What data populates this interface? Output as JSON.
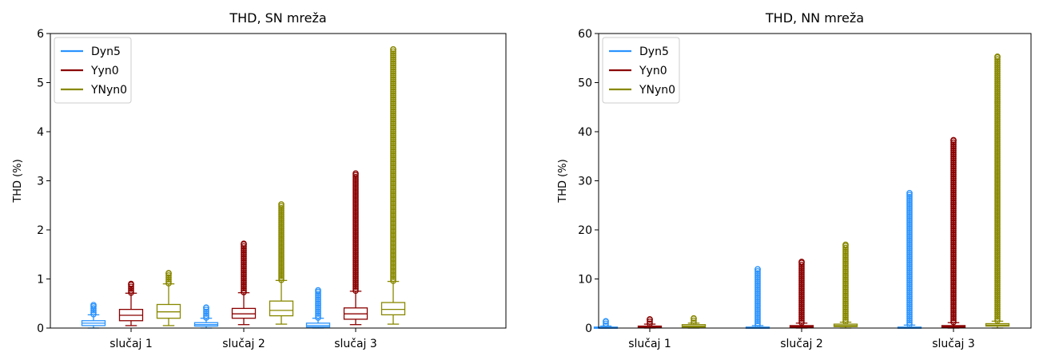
{
  "chart_data": [
    {
      "type": "box",
      "title": "THD, SN mreža",
      "xlabel": "",
      "ylabel": "THD (%)",
      "categories": [
        "slučaj 1",
        "slučaj 2",
        "slučaj 3"
      ],
      "ylim": [
        0,
        6
      ],
      "yticks": [
        "0",
        "1",
        "2",
        "3",
        "4",
        "5",
        "6"
      ],
      "legend_position": "top-left",
      "grid": false,
      "series": [
        {
          "name": "Dyn5",
          "color": "#2a93ff",
          "boxes": [
            {
              "whislo": 0.0,
              "q1": 0.05,
              "med": 0.1,
              "q3": 0.15,
              "whishi": 0.27,
              "fliers_from": 0.28,
              "fliers_to": 0.47
            },
            {
              "whislo": 0.0,
              "q1": 0.04,
              "med": 0.07,
              "q3": 0.11,
              "whishi": 0.2,
              "fliers_from": 0.21,
              "fliers_to": 0.42
            },
            {
              "whislo": 0.0,
              "q1": 0.02,
              "med": 0.05,
              "q3": 0.1,
              "whishi": 0.2,
              "fliers_from": 0.21,
              "fliers_to": 0.77
            }
          ]
        },
        {
          "name": "Yyn0",
          "color": "#8b0000",
          "boxes": [
            {
              "whislo": 0.05,
              "q1": 0.15,
              "med": 0.26,
              "q3": 0.38,
              "whishi": 0.71,
              "fliers_from": 0.72,
              "fliers_to": 0.9
            },
            {
              "whislo": 0.07,
              "q1": 0.2,
              "med": 0.29,
              "q3": 0.4,
              "whishi": 0.72,
              "fliers_from": 0.73,
              "fliers_to": 1.72
            },
            {
              "whislo": 0.07,
              "q1": 0.18,
              "med": 0.29,
              "q3": 0.41,
              "whishi": 0.75,
              "fliers_from": 0.76,
              "fliers_to": 3.15
            }
          ]
        },
        {
          "name": "YNyn0",
          "color": "#888800",
          "boxes": [
            {
              "whislo": 0.05,
              "q1": 0.2,
              "med": 0.33,
              "q3": 0.48,
              "whishi": 0.9,
              "fliers_from": 0.91,
              "fliers_to": 1.12
            },
            {
              "whislo": 0.08,
              "q1": 0.25,
              "med": 0.36,
              "q3": 0.55,
              "whishi": 0.97,
              "fliers_from": 0.98,
              "fliers_to": 2.52
            },
            {
              "whislo": 0.08,
              "q1": 0.27,
              "med": 0.38,
              "q3": 0.52,
              "whishi": 0.95,
              "fliers_from": 0.96,
              "fliers_to": 5.68
            }
          ]
        }
      ]
    },
    {
      "type": "box",
      "title": "THD, NN mreža",
      "xlabel": "",
      "ylabel": "THD (%)",
      "categories": [
        "slučaj 1",
        "slučaj 2",
        "slučaj 3"
      ],
      "ylim": [
        0,
        60
      ],
      "yticks": [
        "0",
        "10",
        "20",
        "30",
        "40",
        "50",
        "60"
      ],
      "legend_position": "top-left",
      "grid": false,
      "series": [
        {
          "name": "Dyn5",
          "color": "#2a93ff",
          "boxes": [
            {
              "whislo": 0.0,
              "q1": 0.05,
              "med": 0.1,
              "q3": 0.2,
              "whishi": 0.4,
              "fliers_from": 0.5,
              "fliers_to": 1.4
            },
            {
              "whislo": 0.0,
              "q1": 0.05,
              "med": 0.1,
              "q3": 0.2,
              "whishi": 0.5,
              "fliers_from": 0.6,
              "fliers_to": 12.0
            },
            {
              "whislo": 0.0,
              "q1": 0.05,
              "med": 0.1,
              "q3": 0.2,
              "whishi": 0.6,
              "fliers_from": 0.7,
              "fliers_to": 27.5
            }
          ]
        },
        {
          "name": "Yyn0",
          "color": "#8b0000",
          "boxes": [
            {
              "whislo": 0.0,
              "q1": 0.1,
              "med": 0.2,
              "q3": 0.4,
              "whishi": 0.8,
              "fliers_from": 0.9,
              "fliers_to": 1.8
            },
            {
              "whislo": 0.0,
              "q1": 0.15,
              "med": 0.3,
              "q3": 0.5,
              "whishi": 1.0,
              "fliers_from": 1.1,
              "fliers_to": 13.5
            },
            {
              "whislo": 0.0,
              "q1": 0.15,
              "med": 0.3,
              "q3": 0.5,
              "whishi": 1.1,
              "fliers_from": 1.2,
              "fliers_to": 38.3
            }
          ]
        },
        {
          "name": "YNyn0",
          "color": "#888800",
          "boxes": [
            {
              "whislo": 0.0,
              "q1": 0.2,
              "med": 0.4,
              "q3": 0.7,
              "whishi": 1.0,
              "fliers_from": 1.1,
              "fliers_to": 2.0
            },
            {
              "whislo": 0.0,
              "q1": 0.3,
              "med": 0.5,
              "q3": 0.8,
              "whishi": 1.2,
              "fliers_from": 1.3,
              "fliers_to": 17.0
            },
            {
              "whislo": 0.0,
              "q1": 0.4,
              "med": 0.6,
              "q3": 0.9,
              "whishi": 1.4,
              "fliers_from": 1.5,
              "fliers_to": 55.3
            }
          ]
        }
      ]
    }
  ]
}
